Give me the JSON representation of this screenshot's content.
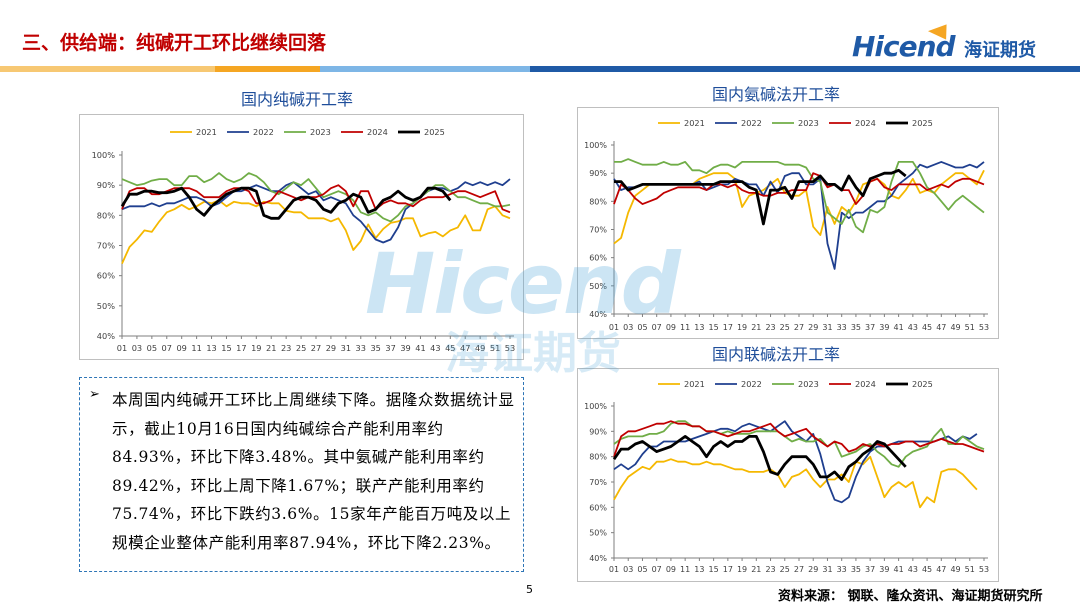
{
  "header": {
    "title": "三、供给端：纯碱开工环比继续回落",
    "logo_text": "Hicend",
    "logo_cn": "海证期货"
  },
  "brand_colors": {
    "blue": "#1f5aa6",
    "orange": "#f5a623",
    "red": "#c00000"
  },
  "watermark": {
    "text": "Hicend",
    "cn": "海证期货"
  },
  "summary": {
    "bullet_icon": "arrow-bullet-icon",
    "text": "本周国内纯碱开工环比上周继续下降。据隆众数据统计显示，截止10月16日国内纯碱综合产能利用率约84.93%，环比下降3.48%。其中氨碱产能利用率约89.42%，环比上周下降1.67%；联产产能利用率约75.74%，环比下跌约3.6%。15家年产能百万吨及以上规模企业整体产能利用率87.94%，环比下降2.23%。"
  },
  "footer": {
    "page": "5",
    "source": "资料来源：  钢联、隆众资讯、海证期货研究所"
  },
  "chart_data": [
    {
      "id": "soda",
      "type": "line",
      "title": "国内纯碱开工率",
      "ylim": [
        40,
        100
      ],
      "yticks": [
        "40%",
        "50%",
        "60%",
        "70%",
        "80%",
        "90%",
        "100%"
      ],
      "xticks": [
        "01",
        "03",
        "05",
        "07",
        "09",
        "11",
        "13",
        "15",
        "17",
        "19",
        "21",
        "23",
        "25",
        "27",
        "29",
        "31",
        "33",
        "35",
        "37",
        "39",
        "41",
        "43",
        "45",
        "47",
        "49",
        "51",
        "53"
      ],
      "grid": false,
      "legend": "top",
      "series": [
        {
          "name": "2021",
          "color": "#f5b800",
          "width": 1.8,
          "values": [
            64,
            69.5,
            72,
            75,
            74.5,
            78,
            81,
            82,
            83.5,
            82,
            83,
            84.5,
            84,
            85,
            83,
            84.5,
            84,
            84,
            83,
            84.5,
            84,
            84,
            81.5,
            81,
            81,
            79,
            79,
            79,
            78,
            79,
            75,
            68.5,
            71.5,
            77,
            72.5,
            75.5,
            77.5,
            78,
            79,
            79,
            73,
            74,
            74.5,
            73,
            75,
            76,
            80,
            75,
            75,
            82,
            83,
            80,
            79
          ]
        },
        {
          "name": "2022",
          "color": "#1f3f8f",
          "width": 1.8,
          "values": [
            82,
            83,
            83,
            83,
            84,
            83,
            84,
            84,
            85,
            86,
            86,
            85,
            83,
            84,
            86,
            88,
            88,
            89,
            90,
            89,
            88,
            88,
            90,
            91,
            89,
            87,
            88,
            85,
            86,
            85,
            84,
            80,
            78,
            75,
            72,
            71,
            72,
            76,
            82,
            84,
            86,
            88,
            89,
            89,
            88,
            89,
            91,
            90,
            91,
            90,
            91,
            90,
            92
          ]
        },
        {
          "name": "2023",
          "color": "#70ad47",
          "width": 1.8,
          "values": [
            92,
            91,
            90,
            90.5,
            91.5,
            92,
            92,
            90,
            90,
            93,
            93,
            91,
            92,
            94,
            92,
            91,
            92,
            94,
            93,
            91,
            88,
            87,
            89,
            91,
            90,
            92,
            89,
            86,
            87,
            88,
            87,
            85,
            81,
            80,
            81,
            79,
            78,
            80,
            83,
            84,
            86,
            88,
            90,
            90,
            88,
            86,
            86,
            85,
            84,
            84,
            83,
            83,
            83.5
          ]
        },
        {
          "name": "2024",
          "color": "#c00000",
          "width": 1.8,
          "values": [
            82,
            88,
            89,
            89,
            87,
            87,
            88,
            89,
            89,
            89,
            88,
            86,
            86,
            86,
            88,
            89,
            89,
            88,
            84,
            84,
            85,
            88,
            87,
            86,
            85,
            86,
            86,
            87,
            89,
            90,
            88,
            83,
            88,
            88,
            82,
            84,
            85,
            84,
            84,
            83,
            85,
            86,
            86,
            86,
            87,
            88,
            88,
            87,
            86,
            87,
            88,
            82,
            81
          ]
        },
        {
          "name": "2025",
          "color": "#000000",
          "width": 2.8,
          "values": [
            83,
            87,
            87,
            88,
            88,
            87.5,
            87.5,
            88,
            89,
            86,
            82,
            80,
            83,
            85,
            87,
            88,
            89,
            89,
            88,
            80,
            79,
            79,
            82,
            85,
            86,
            86,
            85,
            82,
            81,
            84,
            85,
            87,
            86,
            81,
            82,
            85,
            86,
            88,
            86,
            85,
            86,
            89,
            89,
            88,
            85
          ]
        }
      ]
    },
    {
      "id": "ammonia",
      "type": "line",
      "title": "国内氨碱法开工率",
      "ylim": [
        40,
        100
      ],
      "yticks": [
        "40%",
        "50%",
        "60%",
        "70%",
        "80%",
        "90%",
        "100%"
      ],
      "xticks": [
        "01",
        "03",
        "05",
        "07",
        "09",
        "11",
        "13",
        "15",
        "17",
        "19",
        "21",
        "23",
        "25",
        "27",
        "29",
        "31",
        "33",
        "35",
        "37",
        "39",
        "41",
        "43",
        "45",
        "47",
        "49",
        "51",
        "53"
      ],
      "grid": false,
      "legend": "top",
      "series": [
        {
          "name": "2021",
          "color": "#f5b800",
          "width": 1.8,
          "values": [
            65,
            67,
            76,
            82,
            84,
            86,
            86,
            86,
            86,
            86,
            86,
            86,
            88,
            89,
            90,
            90,
            90,
            88,
            78,
            82,
            83,
            84,
            86,
            88,
            83,
            82,
            82,
            84,
            71,
            68,
            78,
            72,
            78,
            76,
            80,
            86,
            87,
            88,
            86,
            82,
            81,
            84,
            88,
            83,
            84,
            83,
            86,
            88,
            90,
            90,
            88,
            86,
            91
          ]
        },
        {
          "name": "2022",
          "color": "#1f3f8f",
          "width": 1.8,
          "values": [
            88,
            84,
            85,
            85,
            86,
            86,
            86,
            86,
            86,
            86,
            86,
            86,
            87,
            84,
            85,
            86,
            86,
            88,
            87,
            86,
            86,
            82,
            87,
            83,
            89,
            90,
            90,
            86,
            86,
            88,
            65,
            56,
            76,
            74,
            76,
            76,
            78,
            80,
            80,
            82,
            86,
            88,
            90,
            93,
            92,
            93,
            94,
            93,
            92,
            92,
            93,
            92,
            94
          ]
        },
        {
          "name": "2023",
          "color": "#70ad47",
          "width": 1.8,
          "values": [
            94,
            94,
            95,
            94,
            93,
            93,
            93,
            94,
            93,
            93,
            94,
            91,
            91,
            90,
            92,
            93,
            93,
            92,
            94,
            94,
            94,
            94,
            94,
            94,
            93,
            93,
            93,
            92,
            88,
            87,
            76,
            74,
            72,
            77,
            71,
            69,
            77,
            76,
            78,
            87,
            94,
            94,
            94,
            90,
            85,
            83,
            80,
            77,
            80,
            82,
            80,
            78,
            76
          ]
        },
        {
          "name": "2024",
          "color": "#c00000",
          "width": 1.8,
          "values": [
            79,
            86,
            84,
            81,
            79,
            80,
            81,
            83,
            84,
            85,
            85,
            85,
            85,
            84,
            86,
            86,
            85,
            86,
            84,
            83,
            83,
            82,
            82,
            83,
            83,
            84,
            84,
            84,
            90,
            89,
            85,
            86,
            84,
            84,
            79,
            82,
            87,
            88,
            85,
            84,
            86,
            86,
            86,
            86,
            84,
            85,
            86,
            85,
            87,
            88,
            88,
            87,
            86
          ]
        },
        {
          "name": "2025",
          "color": "#000000",
          "width": 2.8,
          "values": [
            87,
            87,
            84,
            85,
            86,
            86,
            86,
            86,
            86,
            86,
            86,
            86,
            86,
            86,
            86,
            87,
            87,
            87,
            87,
            85,
            84,
            72,
            84,
            84,
            85,
            81,
            87,
            87,
            87,
            89,
            86,
            86,
            84,
            89,
            85,
            82,
            88,
            89,
            90,
            90,
            91,
            89
          ]
        }
      ]
    },
    {
      "id": "joint",
      "type": "line",
      "title": "国内联碱法开工率",
      "ylim": [
        40,
        100
      ],
      "yticks": [
        "40%",
        "50%",
        "60%",
        "70%",
        "80%",
        "90%",
        "100%"
      ],
      "xticks": [
        "01",
        "03",
        "05",
        "07",
        "09",
        "11",
        "13",
        "15",
        "17",
        "19",
        "21",
        "23",
        "25",
        "27",
        "29",
        "31",
        "33",
        "35",
        "37",
        "39",
        "41",
        "43",
        "45",
        "47",
        "49",
        "51",
        "53"
      ],
      "grid": false,
      "legend": "top",
      "series": [
        {
          "name": "2021",
          "color": "#f5b800",
          "width": 1.8,
          "values": [
            63,
            68,
            72,
            74,
            76,
            75,
            78,
            78,
            79,
            78,
            78,
            77,
            77,
            78,
            77,
            77,
            76,
            75,
            75,
            74,
            74,
            74,
            75,
            73,
            68,
            72,
            73,
            75,
            71,
            68,
            71,
            71,
            73,
            70,
            78,
            77,
            80,
            72,
            64,
            68,
            70,
            68,
            70,
            60,
            64,
            62,
            74,
            75,
            75,
            73,
            70,
            67
          ]
        },
        {
          "name": "2022",
          "color": "#1f3f8f",
          "width": 1.8,
          "values": [
            75,
            77,
            75,
            77,
            81,
            84,
            84,
            86,
            86,
            86,
            86,
            87,
            88,
            89,
            90,
            91,
            91,
            90,
            92,
            93,
            92,
            91,
            90,
            92,
            94,
            90,
            88,
            86,
            89,
            81,
            70,
            63,
            62,
            64,
            72,
            78,
            82,
            84,
            84,
            85,
            86,
            86,
            86,
            86,
            86,
            86,
            87,
            88,
            86,
            88,
            87,
            89
          ]
        },
        {
          "name": "2023",
          "color": "#70ad47",
          "width": 1.8,
          "values": [
            85,
            87,
            88,
            88,
            88,
            89,
            89,
            90,
            93,
            94,
            94,
            92,
            92,
            90,
            90,
            89,
            90,
            89,
            89,
            89,
            90,
            90,
            90,
            90,
            88,
            86,
            87,
            86,
            86,
            87,
            84,
            86,
            80,
            81,
            82,
            84,
            85,
            82,
            80,
            77,
            76,
            80,
            82,
            83,
            84,
            88,
            91,
            85,
            85,
            88,
            86,
            84,
            83
          ]
        },
        {
          "name": "2024",
          "color": "#c00000",
          "width": 1.8,
          "values": [
            80,
            88,
            90,
            90,
            91,
            92,
            93,
            93,
            94,
            93,
            93,
            92,
            92,
            90,
            90,
            89,
            88,
            89,
            90,
            90,
            91,
            92,
            93,
            90,
            88,
            89,
            90,
            91,
            88,
            86,
            84,
            86,
            85,
            82,
            83,
            85,
            84,
            85,
            84,
            85,
            85,
            86,
            86,
            84,
            85,
            86,
            87,
            86,
            85,
            85,
            84,
            83,
            82
          ]
        },
        {
          "name": "2025",
          "color": "#000000",
          "width": 2.8,
          "values": [
            79,
            83,
            83,
            85,
            86,
            84,
            82,
            83,
            84,
            86,
            88,
            86,
            84,
            80,
            84,
            86,
            84,
            86,
            86,
            88,
            88,
            82,
            74,
            73,
            77,
            80,
            80,
            80,
            77,
            72,
            72,
            74,
            71,
            76,
            78,
            81,
            83,
            86,
            85,
            82,
            79,
            76
          ]
        }
      ]
    }
  ]
}
